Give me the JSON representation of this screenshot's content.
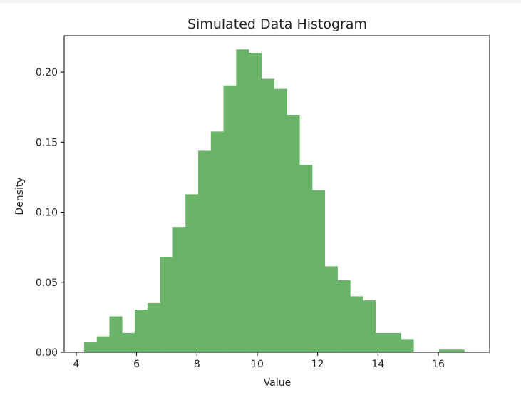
{
  "chart_data": {
    "type": "bar",
    "title": "Simulated Data Histogram",
    "xlabel": "Value",
    "ylabel": "Density",
    "xlim": [
      3.6,
      17.7
    ],
    "ylim": [
      0,
      0.226
    ],
    "xticks": [
      4,
      6,
      8,
      10,
      12,
      14,
      16
    ],
    "yticks": [
      0.0,
      0.05,
      0.1,
      0.15,
      0.2
    ],
    "ytick_labels": [
      "0.00",
      "0.05",
      "0.10",
      "0.15",
      "0.20"
    ],
    "grid": false,
    "bar_color": "#6ab46a",
    "bins": [
      {
        "x0": 4.26,
        "x1": 4.68,
        "density": 0.0071
      },
      {
        "x0": 4.68,
        "x1": 5.1,
        "density": 0.0114
      },
      {
        "x0": 5.1,
        "x1": 5.52,
        "density": 0.0257
      },
      {
        "x0": 5.52,
        "x1": 5.94,
        "density": 0.0138
      },
      {
        "x0": 5.94,
        "x1": 6.36,
        "density": 0.0305
      },
      {
        "x0": 6.36,
        "x1": 6.78,
        "density": 0.0352
      },
      {
        "x0": 6.78,
        "x1": 7.2,
        "density": 0.0681
      },
      {
        "x0": 7.2,
        "x1": 7.62,
        "density": 0.0895
      },
      {
        "x0": 7.62,
        "x1": 8.04,
        "density": 0.1128
      },
      {
        "x0": 8.04,
        "x1": 8.46,
        "density": 0.1438
      },
      {
        "x0": 8.46,
        "x1": 8.88,
        "density": 0.1576
      },
      {
        "x0": 8.88,
        "x1": 9.3,
        "density": 0.1905
      },
      {
        "x0": 9.3,
        "x1": 9.72,
        "density": 0.2162
      },
      {
        "x0": 9.72,
        "x1": 10.14,
        "density": 0.2138
      },
      {
        "x0": 10.14,
        "x1": 10.56,
        "density": 0.1952
      },
      {
        "x0": 10.56,
        "x1": 10.98,
        "density": 0.188
      },
      {
        "x0": 10.98,
        "x1": 11.4,
        "density": 0.1695
      },
      {
        "x0": 11.4,
        "x1": 11.82,
        "density": 0.1338
      },
      {
        "x0": 11.82,
        "x1": 12.24,
        "density": 0.1157
      },
      {
        "x0": 12.24,
        "x1": 12.66,
        "density": 0.0614
      },
      {
        "x0": 12.66,
        "x1": 13.08,
        "density": 0.0514
      },
      {
        "x0": 13.08,
        "x1": 13.5,
        "density": 0.04
      },
      {
        "x0": 13.5,
        "x1": 13.92,
        "density": 0.0371
      },
      {
        "x0": 13.92,
        "x1": 14.34,
        "density": 0.0138
      },
      {
        "x0": 14.34,
        "x1": 14.76,
        "density": 0.0138
      },
      {
        "x0": 14.76,
        "x1": 15.18,
        "density": 0.0095
      },
      {
        "x0": 16.02,
        "x1": 16.44,
        "density": 0.0019
      },
      {
        "x0": 16.44,
        "x1": 16.86,
        "density": 0.0019
      }
    ]
  }
}
